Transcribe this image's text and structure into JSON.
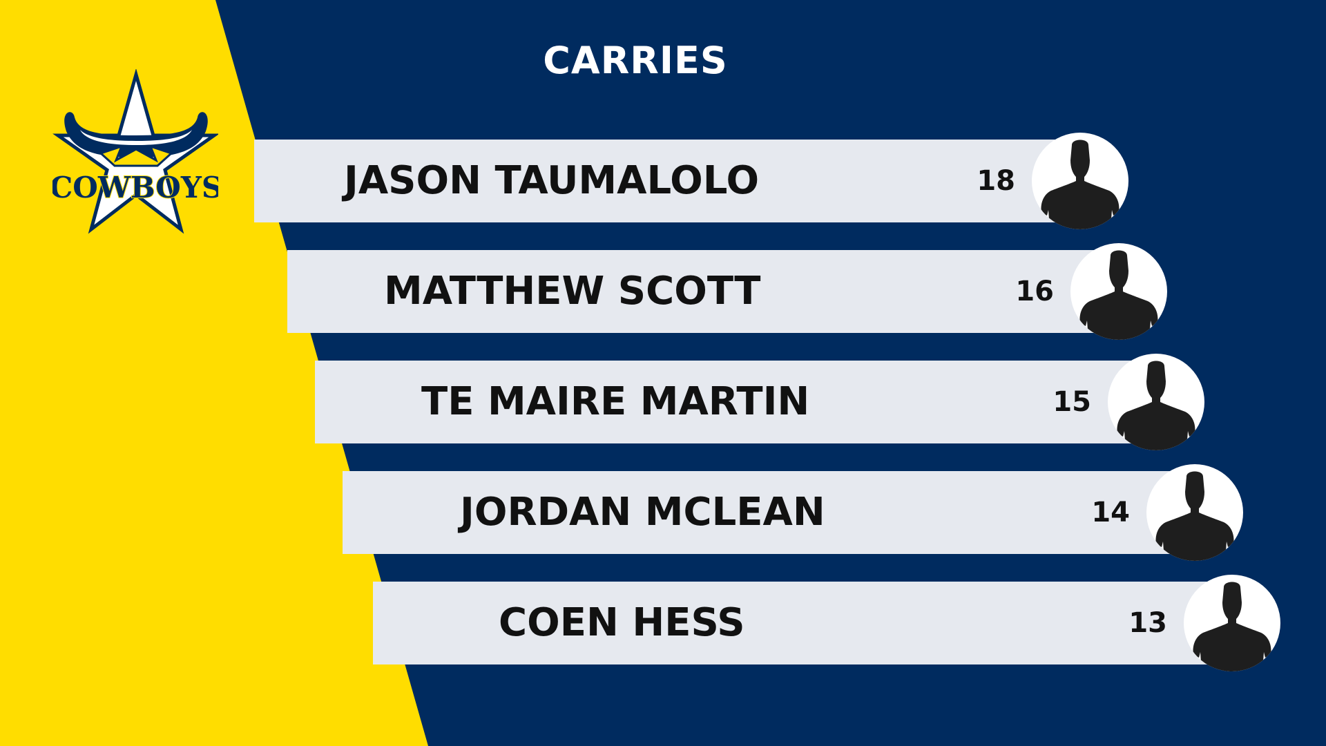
{
  "title": "CARRIES",
  "logo": {
    "text": "COWBOYS",
    "icon": "cowboys-star-bull-logo"
  },
  "colors": {
    "background": "#002b5f",
    "panel": "#ffdd00",
    "bar": "#e6e9ef",
    "text": "#111111"
  },
  "players": [
    {
      "name": "JASON TAUMALOLO",
      "value": "18",
      "avatar_icon": "player-silhouette-icon"
    },
    {
      "name": "MATTHEW SCOTT",
      "value": "16",
      "avatar_icon": "player-silhouette-icon"
    },
    {
      "name": "TE MAIRE MARTIN",
      "value": "15",
      "avatar_icon": "player-silhouette-icon"
    },
    {
      "name": "JORDAN MCLEAN",
      "value": "14",
      "avatar_icon": "player-silhouette-icon"
    },
    {
      "name": "COEN HESS",
      "value": "13",
      "avatar_icon": "player-silhouette-icon"
    }
  ]
}
